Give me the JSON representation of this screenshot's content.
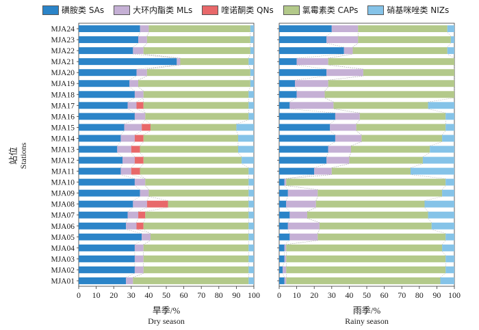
{
  "colors": {
    "SAs": "#2b84c8",
    "MLs": "#c5b0d5",
    "QNs": "#e8686a",
    "CAPs": "#b3c98a",
    "NIZs": "#85c3e8",
    "connector": "#9a9a9a"
  },
  "chart_data": [
    {
      "type": "bar",
      "orientation": "horizontal",
      "stacked": true,
      "season_cn": "旱季/%",
      "season_en": "Dry season",
      "ylabel_cn": "站位",
      "ylabel_en": "Stations",
      "xlim": [
        0,
        100
      ],
      "xticks": [
        "0",
        "10",
        "20",
        "30",
        "40",
        "50",
        "60",
        "70",
        "80",
        "90",
        "100"
      ],
      "categories": [
        "MJA01",
        "MJA02",
        "MJA03",
        "MJA04",
        "MJA05",
        "MJA06",
        "MJA07",
        "MJA08",
        "MJA09",
        "MJA10",
        "MJA11",
        "MJA12",
        "MJA13",
        "MJA14",
        "MJA15",
        "MJA16",
        "MJA17",
        "MJA18",
        "MJA19",
        "MJA20",
        "MJA21",
        "MJA22",
        "MJA23",
        "MJA24"
      ],
      "series": [
        {
          "key": "SAs",
          "name": "磺胺类 SAs",
          "values": [
            27,
            32,
            32,
            32,
            36,
            27,
            28,
            31,
            35,
            32,
            24,
            25,
            22,
            24,
            26,
            32,
            28,
            32,
            29,
            33,
            56,
            31,
            34,
            35
          ]
        },
        {
          "key": "MLs",
          "name": "大环内酯类 MLs",
          "values": [
            4,
            5,
            5,
            5,
            5,
            6,
            6,
            8,
            5,
            6,
            6,
            7,
            8,
            8,
            10,
            6,
            5,
            5,
            5,
            6,
            2,
            6,
            5,
            5
          ]
        },
        {
          "key": "QNs",
          "name": "喹诺酮类 QNs",
          "values": [
            0,
            0,
            0,
            0,
            0,
            4,
            4,
            12,
            0,
            0,
            5,
            5,
            5,
            5,
            5,
            0,
            4,
            0,
            0,
            0,
            0,
            0,
            0,
            0
          ]
        },
        {
          "key": "CAPs",
          "name": "氯霉素类 CAPs",
          "values": [
            66,
            60,
            60,
            60,
            56,
            60,
            59,
            46,
            57,
            59,
            62,
            56,
            56,
            54,
            49,
            59,
            60,
            60,
            64,
            59,
            39,
            61,
            59,
            58
          ]
        },
        {
          "key": "NIZs",
          "name": "硝基咪唑类 NIZs",
          "values": [
            3,
            3,
            3,
            3,
            3,
            3,
            3,
            3,
            3,
            3,
            3,
            7,
            9,
            9,
            10,
            3,
            3,
            3,
            2,
            2,
            3,
            2,
            2,
            2
          ]
        }
      ]
    },
    {
      "type": "bar",
      "orientation": "horizontal",
      "stacked": true,
      "season_cn": "雨季/%",
      "season_en": "Rainy season",
      "xlim": [
        0,
        100
      ],
      "xticks": [
        "0",
        "10",
        "20",
        "30",
        "40",
        "50",
        "60",
        "70",
        "80",
        "90",
        "100"
      ],
      "categories": [
        "MJA01",
        "MJA02",
        "MJA03",
        "MJA04",
        "MJA05",
        "MJA06",
        "MJA07",
        "MJA08",
        "MJA09",
        "MJA10",
        "MJA11",
        "MJA12",
        "MJA13",
        "MJA14",
        "MJA15",
        "MJA16",
        "MJA17",
        "MJA18",
        "MJA19",
        "MJA20",
        "MJA21",
        "MJA22",
        "MJA23",
        "MJA24"
      ],
      "series": [
        {
          "key": "SAs",
          "name": "磺胺类 SAs",
          "values": [
            3,
            2,
            3,
            3,
            6,
            5,
            6,
            4,
            5,
            3,
            20,
            27,
            28,
            32,
            29,
            32,
            6,
            10,
            9,
            27,
            10,
            37,
            27,
            30
          ]
        },
        {
          "key": "MLs",
          "name": "大环内酯类 MLs",
          "values": [
            1,
            2,
            1,
            1,
            16,
            18,
            10,
            17,
            17,
            1,
            10,
            13,
            13,
            15,
            15,
            14,
            25,
            16,
            19,
            21,
            18,
            5,
            18,
            15
          ]
        },
        {
          "key": "QNs",
          "name": "喹诺酮类 QNs",
          "values": [
            0,
            0,
            0,
            0,
            0,
            0,
            0,
            0,
            0,
            0,
            0,
            0,
            0,
            0,
            0,
            0,
            0,
            0,
            0,
            0,
            0,
            0,
            0,
            0
          ]
        },
        {
          "key": "CAPs",
          "name": "氯霉素类 CAPs",
          "values": [
            88,
            91,
            91,
            89,
            73,
            64,
            69,
            62,
            71,
            91,
            45,
            42,
            45,
            46,
            51,
            49,
            54,
            74,
            72,
            52,
            72,
            54,
            53,
            51
          ]
        },
        {
          "key": "NIZs",
          "name": "硝基咪唑类 NIZs",
          "values": [
            8,
            5,
            5,
            7,
            5,
            13,
            15,
            17,
            7,
            5,
            25,
            18,
            14,
            7,
            5,
            5,
            15,
            0,
            0,
            0,
            0,
            4,
            2,
            4
          ]
        }
      ]
    }
  ]
}
